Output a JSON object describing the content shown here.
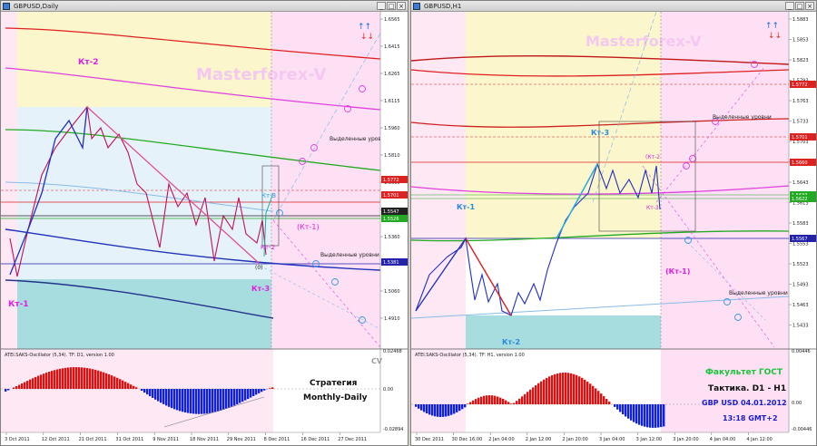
{
  "left": {
    "title": "GBPUSD,Daily",
    "watermark": "Masterforex-V",
    "labels": {
      "kt2": "Кт-2",
      "kt1": "Кт-1",
      "kt3a": "Кт-3",
      "kt2b": "Кт-2",
      "kt3b": "Кт-3",
      "kt1b": "(Кт-1)",
      "zero": "(0)"
    },
    "levels_text": "Выделенные уровни",
    "levels_text2": "Выделенные уровни",
    "price_ticks": [
      "1.6565",
      "1.6415",
      "1.6265",
      "1.6115",
      "1.5960",
      "1.5810",
      "1.5660",
      "1.5510",
      "1.5360",
      "1.5210",
      "1.5060",
      "1.4910"
    ],
    "price_tags": [
      {
        "text": "1.5772",
        "color": "#d22"
      },
      {
        "text": "1.5701",
        "color": "#d22"
      },
      {
        "text": "1.5547",
        "color": "#222"
      },
      {
        "text": "1.5526",
        "color": "#2a2"
      },
      {
        "text": "1.5381",
        "color": "#22a"
      }
    ],
    "date_ticks": [
      "3 Oct 2011",
      "12 Oct 2011",
      "21 Oct 2011",
      "31 Oct 2011",
      "9 Nov 2011",
      "18 Nov 2011",
      "29 Nov 2011",
      "8 Dec 2011",
      "16 Dec 2011",
      "27 Dec 2011"
    ],
    "osc_title": "ATEI.SAKS-Oscillator (5,34). TF: D1,  version 1.00",
    "osc_ticks": [
      "0.02468",
      "0.00",
      "-0.02894"
    ],
    "osc_cv": "CV",
    "strategy_line1": "Стратегия",
    "strategy_line2": "Monthly-Daily"
  },
  "right": {
    "title": "GBPUSD,H1",
    "watermark": "Masterforex-V",
    "labels": {
      "kt1": "Кт-1",
      "kt3": "Кт-3",
      "kt2": "(Кт-2",
      "kt2b": "Кт-2",
      "kt1b": "(Кт-1)",
      "kt3b": "Кт-3"
    },
    "levels_text": "Выделенные уровни",
    "levels_text2": "Выделенные уровни",
    "price_ticks": [
      "1.5883",
      "1.5853",
      "1.5823",
      "1.5793",
      "1.5763",
      "1.5733",
      "1.5703",
      "1.5673",
      "1.5643",
      "1.5613",
      "1.5583",
      "1.5553",
      "1.5523",
      "1.5493",
      "1.5463",
      "1.5433"
    ],
    "price_tags": [
      {
        "text": "1.5772",
        "color": "#d22"
      },
      {
        "text": "1.5701",
        "color": "#d22"
      },
      {
        "text": "1.5660",
        "color": "#d22"
      },
      {
        "text": "1.5633",
        "color": "#2a2"
      },
      {
        "text": "1.5622",
        "color": "#2a2"
      },
      {
        "text": "1.5567",
        "color": "#22a"
      }
    ],
    "date_ticks": [
      "30 Dec 2011",
      "30 Dec 16:00",
      "2 Jan 04:00",
      "2 Jan 12:00",
      "2 Jan 20:00",
      "3 Jan 04:00",
      "3 Jan 12:00",
      "3 Jan 20:00",
      "4 Jan 04:00",
      "4 Jan 12:00"
    ],
    "osc_title": "ATEI.SAKS-Oscillator (5,34). TF: H1,  version 1.00",
    "osc_ticks": [
      "0.00446",
      "0.00",
      "-0.00446"
    ],
    "info_line1": "Факультет ГОСТ",
    "info_line2": "Тактика. D1 - H1",
    "info_line3": "GBP USD 04.01.2012",
    "info_line4": "13:18 GMT+2"
  },
  "colors": {
    "green_text": "#19c43a",
    "blue_text": "#1a1ad2",
    "magenta": "#e020e0",
    "watermark": "#f4c8f0"
  }
}
